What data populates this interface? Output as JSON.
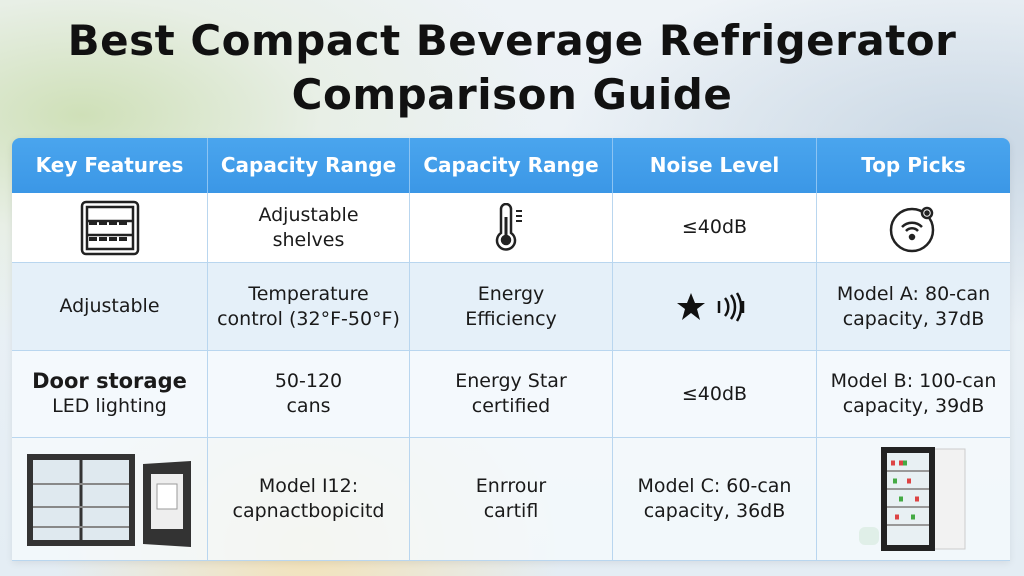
{
  "title": {
    "line1": "Best Compact Beverage Refrigerator",
    "line2": "Comparison Guide"
  },
  "table": {
    "headers": [
      "Key Features",
      "Capacity Range",
      "Capacity Range",
      "Noise Level",
      "Top Picks"
    ],
    "rows": [
      {
        "c1_icon": "fridge-shelves-icon",
        "c2": [
          "Adjustable",
          "shelves"
        ],
        "c3_icon": "thermometer-icon",
        "c4": "≤40dB",
        "c5_icon": "wifi-circle-icon"
      },
      {
        "c1": "Adjustable",
        "c2": [
          "Temperature",
          "control (32°F-50°F)"
        ],
        "c3": [
          "Energy",
          "Efficiency"
        ],
        "c4_icon": "star-sound-icon",
        "c5": [
          "Model A: 80-can",
          "capacity, 37dB"
        ]
      },
      {
        "c1": [
          "Door storage",
          "LED lighting"
        ],
        "c2": [
          "50-120",
          "cans"
        ],
        "c3": [
          "Energy Star",
          "certified"
        ],
        "c4": "≤40dB",
        "c5": [
          "Model B: 100-can",
          "capacity, 39dB"
        ]
      },
      {
        "c1_image": "open-fridge-image",
        "c2": [
          "Model I12:",
          "capnactbopicitd"
        ],
        "c3": [
          "Enrrour",
          "cartifl"
        ],
        "c4": [
          "Model C: 60-can",
          "capacity, 36dB"
        ],
        "c5_image": "glass-door-fridge-image"
      }
    ]
  }
}
